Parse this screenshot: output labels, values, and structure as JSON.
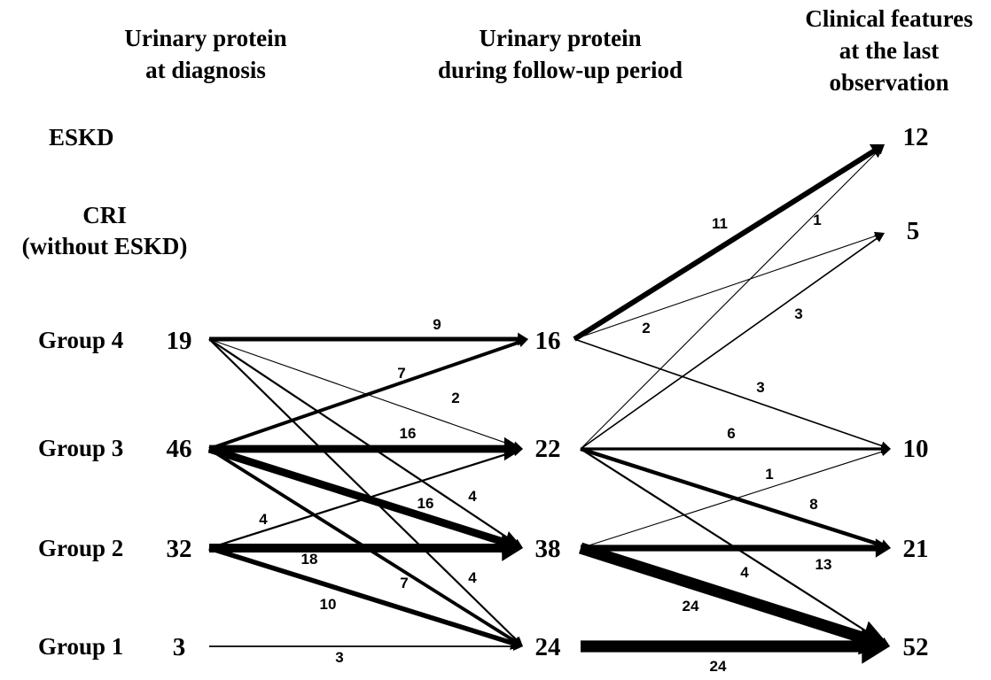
{
  "headers": {
    "col1": [
      "Urinary protein",
      "at diagnosis"
    ],
    "col2": [
      "Urinary protein",
      "during follow-up period"
    ],
    "col3": [
      "Clinical features",
      "at the last",
      "observation"
    ]
  },
  "row_labels": {
    "eskd": "ESKD",
    "cri": [
      "CRI",
      "(without ESKD)"
    ],
    "group4": "Group 4",
    "group3": "Group 3",
    "group2": "Group 2",
    "group1": "Group 1"
  },
  "nodes": {
    "diagnosis": {
      "g4": "19",
      "g3": "46",
      "g2": "32",
      "g1": "3"
    },
    "followup": {
      "g4": "16",
      "g3": "22",
      "g2": "38",
      "g1": "24"
    },
    "last": {
      "eskd": "12",
      "cri": "5",
      "g3": "10",
      "g2": "21",
      "g1": "52"
    }
  },
  "edges": [
    {
      "from": "dx-g4",
      "to": "fu-g4",
      "value": 9
    },
    {
      "from": "dx-g4",
      "to": "fu-g3",
      "value": 2
    },
    {
      "from": "dx-g4",
      "to": "fu-g2",
      "value": 4
    },
    {
      "from": "dx-g4",
      "to": "fu-g1",
      "value": 4
    },
    {
      "from": "dx-g3",
      "to": "fu-g4",
      "value": 7
    },
    {
      "from": "dx-g3",
      "to": "fu-g3",
      "value": 16
    },
    {
      "from": "dx-g3",
      "to": "fu-g2",
      "value": 16
    },
    {
      "from": "dx-g3",
      "to": "fu-g1",
      "value": 7
    },
    {
      "from": "dx-g2",
      "to": "fu-g3",
      "value": 4
    },
    {
      "from": "dx-g2",
      "to": "fu-g2",
      "value": 18
    },
    {
      "from": "dx-g2",
      "to": "fu-g1",
      "value": 10
    },
    {
      "from": "dx-g1",
      "to": "fu-g1",
      "value": 3
    },
    {
      "from": "fu-g4",
      "to": "last-eskd",
      "value": 11
    },
    {
      "from": "fu-g4",
      "to": "last-cri",
      "value": 2
    },
    {
      "from": "fu-g4",
      "to": "last-g3",
      "value": 3
    },
    {
      "from": "fu-g3",
      "to": "last-eskd",
      "value": 1
    },
    {
      "from": "fu-g3",
      "to": "last-cri",
      "value": 3
    },
    {
      "from": "fu-g3",
      "to": "last-g3",
      "value": 6
    },
    {
      "from": "fu-g3",
      "to": "last-g2",
      "value": 8
    },
    {
      "from": "fu-g3",
      "to": "last-g1",
      "value": 4
    },
    {
      "from": "fu-g2",
      "to": "last-g3",
      "value": 1
    },
    {
      "from": "fu-g2",
      "to": "last-g2",
      "value": 13
    },
    {
      "from": "fu-g2",
      "to": "last-g1",
      "value": 24
    },
    {
      "from": "fu-g1",
      "to": "last-g1",
      "value": 24
    }
  ]
}
